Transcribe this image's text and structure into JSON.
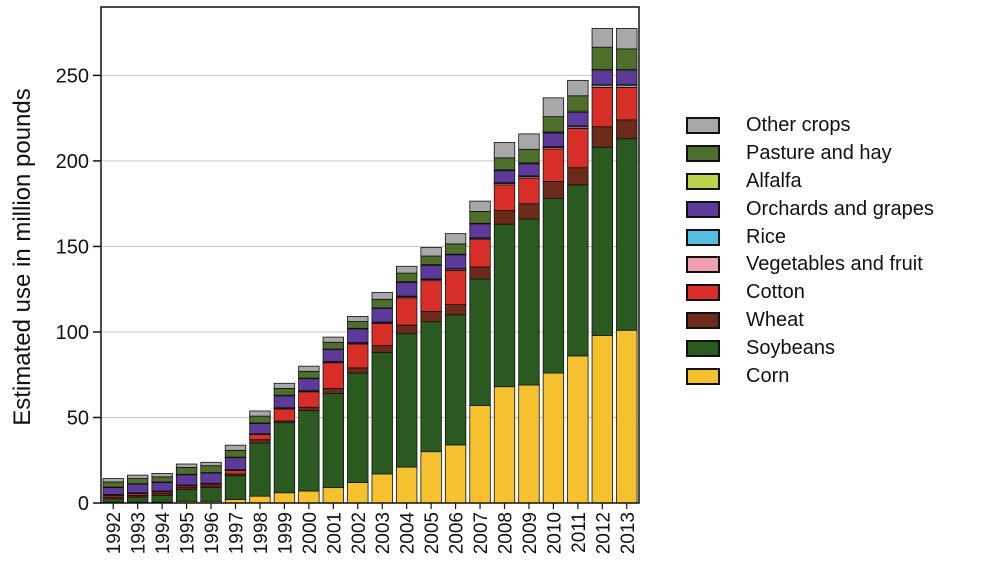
{
  "chart_data": {
    "type": "bar",
    "stacked": true,
    "title": "",
    "xlabel": "",
    "ylabel": "Estimated use in million pounds",
    "ylim": [
      0,
      290
    ],
    "yticks": [
      0,
      50,
      100,
      150,
      200,
      250
    ],
    "grid": "horizontal",
    "legend_position": "right",
    "categories": [
      "1992",
      "1993",
      "1994",
      "1995",
      "1996",
      "1997",
      "1998",
      "1999",
      "2000",
      "2001",
      "2002",
      "2003",
      "2004",
      "2005",
      "2006",
      "2007",
      "2008",
      "2009",
      "2010",
      "2011",
      "2012",
      "2013"
    ],
    "series": [
      {
        "name": "Corn",
        "color": "#f6c12e",
        "values": [
          0.5,
          0.5,
          0.5,
          1,
          1,
          2,
          4,
          6,
          7,
          9,
          12,
          17,
          21,
          30,
          34,
          57,
          68,
          69,
          76,
          86,
          98,
          101
        ]
      },
      {
        "name": "Soybeans",
        "color": "#2a5a1f",
        "values": [
          2,
          3,
          4,
          7,
          8,
          14,
          31,
          41,
          47,
          55,
          64,
          71,
          78,
          76,
          76,
          74,
          95,
          97,
          102,
          100,
          110,
          112
        ]
      },
      {
        "name": "Wheat",
        "color": "#6b2a1a",
        "values": [
          1,
          1,
          1,
          1,
          1,
          1,
          2,
          1,
          2,
          3,
          3,
          4,
          5,
          6,
          6,
          7,
          8,
          9,
          10,
          10,
          12,
          11
        ]
      },
      {
        "name": "Cotton",
        "color": "#d82e28",
        "values": [
          1,
          1,
          1,
          1,
          1,
          2,
          3,
          7,
          9,
          15,
          14,
          13,
          16,
          18,
          20,
          16,
          15,
          15,
          19,
          23,
          23,
          19
        ]
      },
      {
        "name": "Vegetables and fruit",
        "color": "#f0a0b0",
        "values": [
          0.3,
          0.3,
          0.3,
          0.3,
          0.3,
          0.3,
          0.3,
          0.4,
          0.4,
          0.4,
          0.5,
          0.5,
          0.6,
          0.6,
          0.7,
          0.7,
          0.8,
          0.8,
          0.9,
          0.9,
          1,
          1
        ]
      },
      {
        "name": "Rice",
        "color": "#55bde0",
        "values": [
          0.2,
          0.2,
          0.2,
          0.2,
          0.2,
          0.2,
          0.2,
          0.3,
          0.3,
          0.3,
          0.3,
          0.3,
          0.4,
          0.4,
          0.4,
          0.4,
          0.5,
          0.5,
          0.5,
          0.6,
          0.8,
          0.8
        ]
      },
      {
        "name": "Orchards and grapes",
        "color": "#5b3a9a",
        "values": [
          4,
          5,
          5,
          6,
          6,
          7,
          6,
          7,
          7,
          7,
          8,
          8,
          8,
          8,
          8,
          8,
          7,
          7,
          8,
          8,
          8,
          8
        ]
      },
      {
        "name": "Alfalfa",
        "color": "#b9d34a",
        "values": [
          0.3,
          0.3,
          0.3,
          0.3,
          0.3,
          0.3,
          0.3,
          0.3,
          0.3,
          0.3,
          0.3,
          0.3,
          0.4,
          0.4,
          0.4,
          0.4,
          0.5,
          0.5,
          0.5,
          0.6,
          0.7,
          0.7
        ]
      },
      {
        "name": "Pasture and hay",
        "color": "#4e6e2c",
        "values": [
          3,
          3,
          3,
          4,
          4,
          4,
          4,
          4,
          4,
          4,
          4,
          5,
          5,
          5,
          6,
          7,
          7,
          8,
          9,
          9,
          13,
          12
        ]
      },
      {
        "name": "Other crops",
        "color": "#a8a8a8",
        "values": [
          2,
          2,
          2,
          2,
          2,
          3,
          3,
          3,
          3,
          3,
          3,
          4,
          4,
          5,
          6,
          6,
          9,
          9,
          11,
          9,
          11,
          12
        ]
      }
    ],
    "legend_order": [
      "Other crops",
      "Pasture and hay",
      "Alfalfa",
      "Orchards and grapes",
      "Rice",
      "Vegetables and fruit",
      "Cotton",
      "Wheat",
      "Soybeans",
      "Corn"
    ]
  }
}
